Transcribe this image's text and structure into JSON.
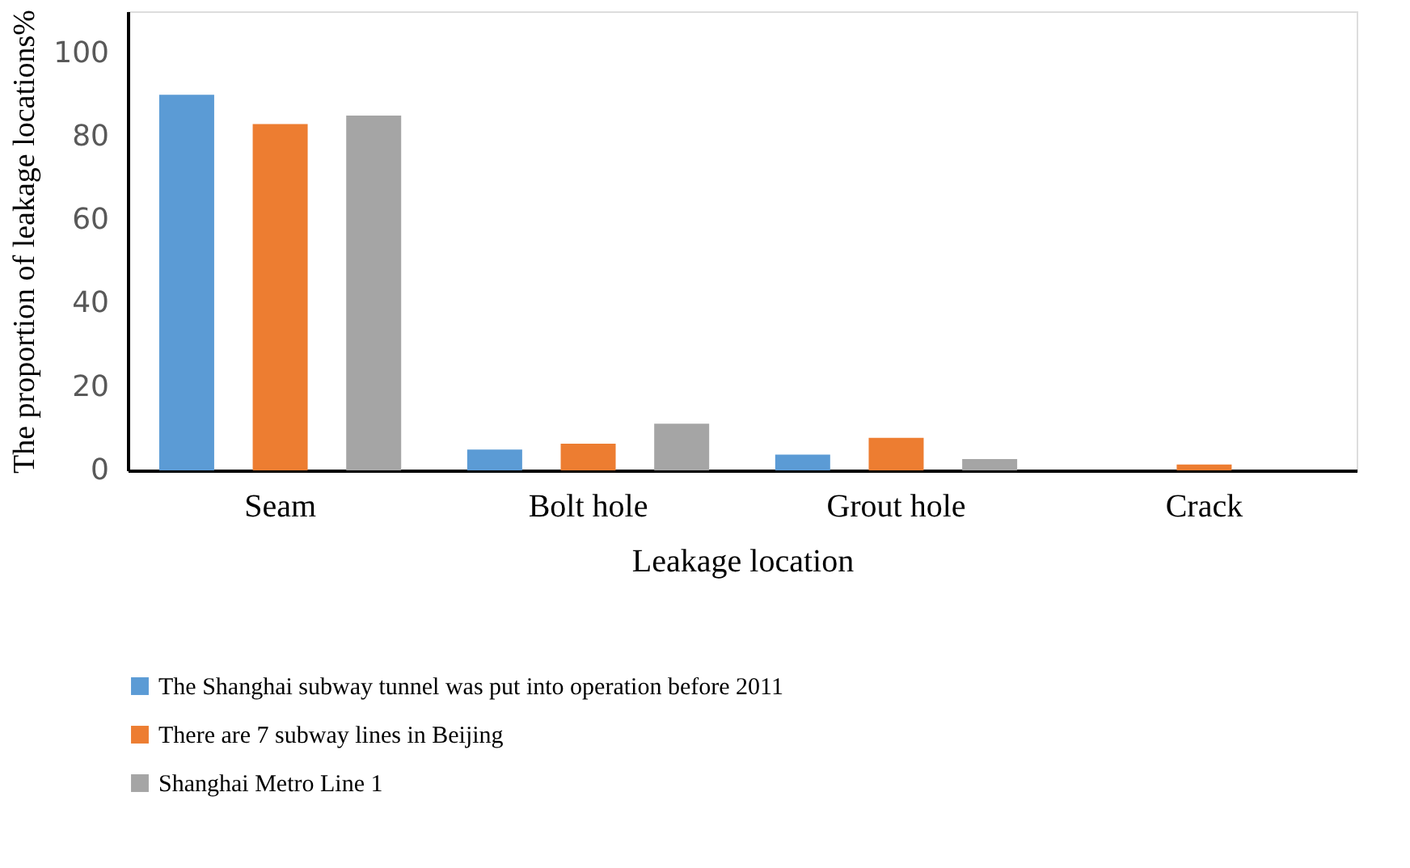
{
  "chart_data": {
    "type": "bar",
    "xlabel": "Leakage location",
    "ylabel": "The proportion of leakage locations%",
    "categories": [
      "Seam",
      "Bolt hole",
      "Grout hole",
      "Crack"
    ],
    "series": [
      {
        "name": "The Shanghai subway tunnel was put into operation before 2011",
        "color": "#5b9bd5",
        "values": [
          90,
          5,
          3.8,
          0
        ]
      },
      {
        "name": "There are 7 subway lines in Beijing",
        "color": "#ed7d31",
        "values": [
          83,
          6.4,
          7.8,
          1.4
        ]
      },
      {
        "name": "Shanghai Metro Line 1",
        "color": "#a5a5a5",
        "values": [
          85,
          11.2,
          2.7,
          0
        ]
      }
    ],
    "ylim": [
      0,
      110
    ],
    "yticks": [
      0,
      20,
      40,
      60,
      80,
      100
    ],
    "grid": false,
    "legend": "bottom"
  }
}
